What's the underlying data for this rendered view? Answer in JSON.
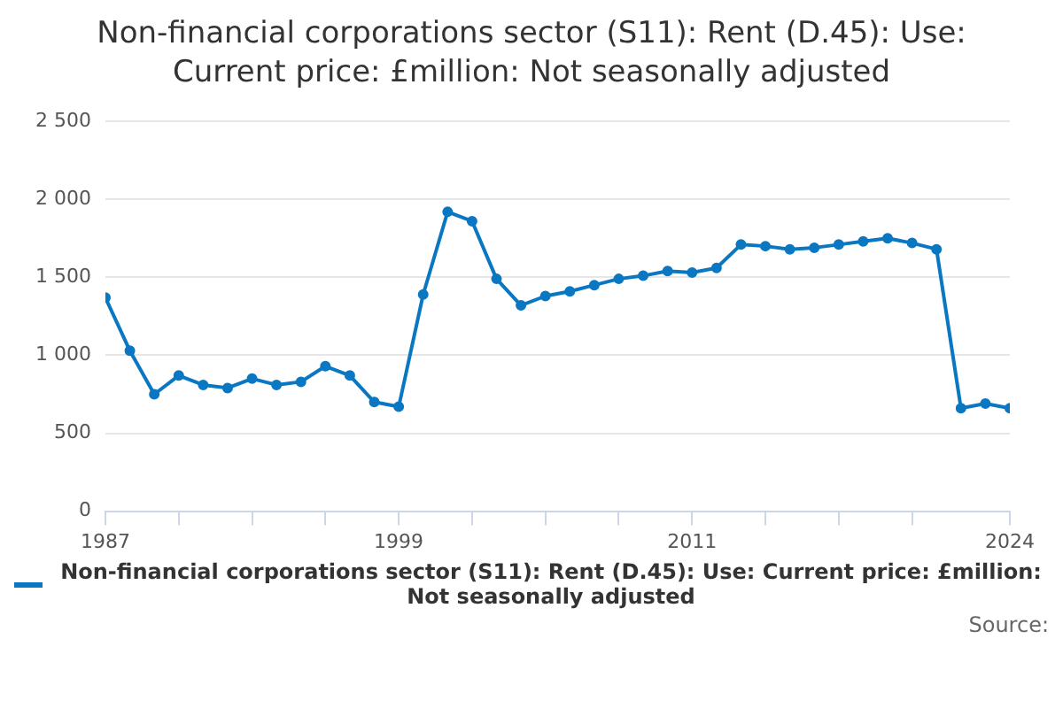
{
  "chart_data": {
    "type": "line",
    "title": "Non-financial corporations sector (S11): Rent (D.45): Use: Current price: £million: Not seasonally adjusted",
    "x": [
      1987,
      1988,
      1989,
      1990,
      1991,
      1992,
      1993,
      1994,
      1995,
      1996,
      1997,
      1998,
      1999,
      2000,
      2001,
      2002,
      2003,
      2004,
      2005,
      2006,
      2007,
      2008,
      2009,
      2010,
      2011,
      2012,
      2013,
      2014,
      2015,
      2016,
      2017,
      2018,
      2019,
      2020,
      2021,
      2022,
      2023,
      2024
    ],
    "series": [
      {
        "name": "Non-financial corporations sector (S11): Rent (D.45): Use: Current price: £million: Not seasonally adjusted",
        "color": "#0a77c2",
        "values": [
          1370,
          1030,
          750,
          870,
          810,
          790,
          850,
          810,
          830,
          930,
          870,
          700,
          670,
          1390,
          1920,
          1860,
          1490,
          1320,
          1380,
          1410,
          1450,
          1490,
          1510,
          1540,
          1530,
          1560,
          1710,
          1700,
          1680,
          1690,
          1710,
          1730,
          1750,
          1720,
          1680,
          660,
          690,
          660
        ]
      }
    ],
    "xlim": [
      1987,
      2024
    ],
    "xticks": [
      1987,
      {
        "value": 1990,
        "label": null
      },
      {
        "value": 1993,
        "label": null
      },
      {
        "value": 1996,
        "label": null
      },
      1999,
      {
        "value": 2002,
        "label": null
      },
      {
        "value": 2005,
        "label": null
      },
      {
        "value": 2008,
        "label": null
      },
      2011,
      {
        "value": 2014,
        "label": null
      },
      {
        "value": 2017,
        "label": null
      },
      {
        "value": 2020,
        "label": null
      },
      2024
    ],
    "ylim": [
      0,
      2500
    ],
    "yticks": [
      0,
      500,
      {
        "value": 1000,
        "label": "1 000"
      },
      {
        "value": 1500,
        "label": "1 500"
      },
      {
        "value": 2000,
        "label": "2 000"
      },
      {
        "value": 2500,
        "label": "2 500"
      }
    ],
    "grid": "y",
    "legend": "bottom",
    "marker": "circle",
    "line_style": "solid",
    "annotations": [
      "Source:"
    ]
  }
}
